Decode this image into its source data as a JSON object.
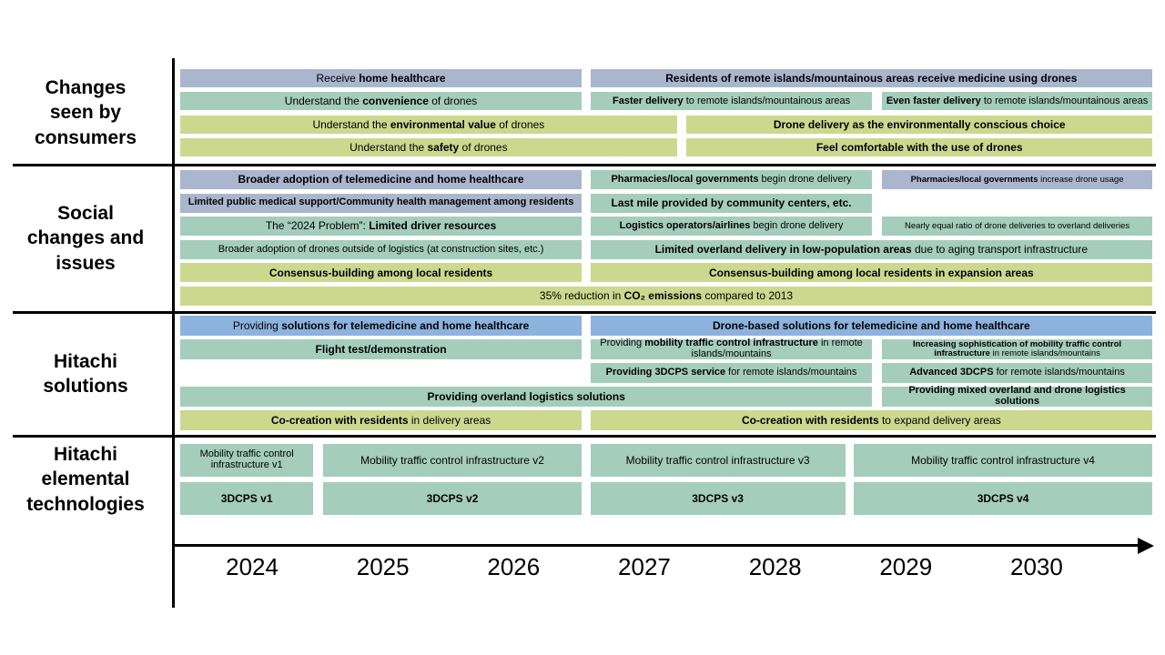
{
  "colors": {
    "grayblue": "#a9b6ce",
    "green": "#a4cdbb",
    "olive": "#ccd88e",
    "blue": "#8db2dd"
  },
  "timeline": {
    "years": [
      "2024",
      "2025",
      "2026",
      "2027",
      "2028",
      "2029",
      "2030"
    ]
  },
  "sections": [
    {
      "id": "consumers",
      "label": "Changes\nseen by\nconsumers",
      "rows": [
        [
          {
            "start": 0,
            "end": 41.3,
            "color": "grayblue",
            "segments": [
              {
                "text": "Receive ",
                "bold": false
              },
              {
                "text": "home healthcare",
                "bold": true
              }
            ]
          },
          {
            "start": 42.2,
            "end": 100,
            "color": "grayblue",
            "segments": [
              {
                "text": "Residents of remote islands/mountainous areas receive medicine using drones",
                "bold": true
              }
            ]
          }
        ],
        [
          {
            "start": 0,
            "end": 41.3,
            "color": "green",
            "segments": [
              {
                "text": "Understand the ",
                "bold": false
              },
              {
                "text": "convenience",
                "bold": true
              },
              {
                "text": " of drones",
                "bold": false
              }
            ]
          },
          {
            "start": 42.2,
            "end": 71.2,
            "color": "green",
            "size": "small",
            "segments": [
              {
                "text": "Faster delivery",
                "bold": true
              },
              {
                "text": " to remote islands/mountainous areas",
                "bold": false
              }
            ]
          },
          {
            "start": 72.2,
            "end": 100,
            "color": "green",
            "size": "small",
            "segments": [
              {
                "text": "Even faster delivery",
                "bold": true
              },
              {
                "text": " to remote islands/mountainous areas",
                "bold": false
              }
            ]
          }
        ],
        [
          {
            "start": 0,
            "end": 51.1,
            "color": "olive",
            "segments": [
              {
                "text": "Understand the ",
                "bold": false
              },
              {
                "text": "environmental value",
                "bold": true
              },
              {
                "text": " of drones",
                "bold": false
              }
            ]
          },
          {
            "start": 52.1,
            "end": 100,
            "color": "olive",
            "segments": [
              {
                "text": "Drone delivery as the environmentally conscious choice",
                "bold": true
              }
            ]
          }
        ],
        [
          {
            "start": 0,
            "end": 51.1,
            "color": "olive",
            "segments": [
              {
                "text": "Understand the ",
                "bold": false
              },
              {
                "text": "safety",
                "bold": true
              },
              {
                "text": " of drones",
                "bold": false
              }
            ]
          },
          {
            "start": 52.1,
            "end": 100,
            "color": "olive",
            "segments": [
              {
                "text": "Feel comfortable with the use of drones",
                "bold": true
              }
            ]
          }
        ]
      ]
    },
    {
      "id": "social",
      "label": "Social\nchanges and\nissues",
      "rows": [
        [
          {
            "start": 0,
            "end": 41.3,
            "color": "grayblue",
            "segments": [
              {
                "text": "Broader adoption of telemedicine and home healthcare",
                "bold": true
              }
            ]
          },
          {
            "start": 42.2,
            "end": 71.2,
            "color": "green",
            "size": "small",
            "segments": [
              {
                "text": "Pharmacies/local governments",
                "bold": true
              },
              {
                "text": " begin drone delivery",
                "bold": false
              }
            ]
          },
          {
            "start": 72.2,
            "end": 100,
            "color": "grayblue",
            "size": "xs",
            "segments": [
              {
                "text": "Pharmacies/local governments",
                "bold": true
              },
              {
                "text": " increase drone usage",
                "bold": false
              }
            ]
          }
        ],
        [
          {
            "start": 0,
            "end": 41.3,
            "color": "grayblue",
            "size": "small",
            "segments": [
              {
                "text": "Limited public medical support/Community health management among residents",
                "bold": true
              }
            ]
          },
          {
            "start": 42.2,
            "end": 71.2,
            "color": "green",
            "segments": [
              {
                "text": "Last mile provided by community centers, etc.",
                "bold": true
              }
            ]
          }
        ],
        [
          {
            "start": 0,
            "end": 41.3,
            "color": "green",
            "segments": [
              {
                "text": "The “2024 Problem”: ",
                "bold": false
              },
              {
                "text": "Limited driver resources",
                "bold": true
              }
            ]
          },
          {
            "start": 42.2,
            "end": 71.2,
            "color": "green",
            "size": "small",
            "segments": [
              {
                "text": "Logistics operators/airlines",
                "bold": true
              },
              {
                "text": " begin drone delivery",
                "bold": false
              }
            ]
          },
          {
            "start": 72.2,
            "end": 100,
            "color": "green",
            "size": "xs",
            "segments": [
              {
                "text": "Nearly equal ratio of drone deliveries to overland deliveries",
                "bold": false
              }
            ]
          }
        ],
        [
          {
            "start": 0,
            "end": 41.3,
            "color": "green",
            "size": "small",
            "segments": [
              {
                "text": "Broader adoption of drones outside of logistics (at construction sites, etc.)",
                "bold": false
              }
            ]
          },
          {
            "start": 42.2,
            "end": 100,
            "color": "green",
            "segments": [
              {
                "text": "Limited overland delivery in low-population areas",
                "bold": true
              },
              {
                "text": " due to aging transport infrastructure",
                "bold": false
              }
            ]
          }
        ],
        [
          {
            "start": 0,
            "end": 41.3,
            "color": "olive",
            "segments": [
              {
                "text": "Consensus-building among local residents",
                "bold": true
              }
            ]
          },
          {
            "start": 42.2,
            "end": 100,
            "color": "olive",
            "segments": [
              {
                "text": "Consensus-building among local residents in expansion areas",
                "bold": true
              }
            ]
          }
        ],
        [
          {
            "start": 0,
            "end": 100,
            "color": "olive",
            "segments": [
              {
                "text": "35% reduction in ",
                "bold": false
              },
              {
                "text": "CO₂ emissions",
                "bold": true
              },
              {
                "text": " compared to 2013",
                "bold": false
              }
            ]
          }
        ]
      ]
    },
    {
      "id": "solutions",
      "label": "Hitachi\nsolutions",
      "rows": [
        [
          {
            "start": 0,
            "end": 41.3,
            "color": "blue",
            "segments": [
              {
                "text": "Providing ",
                "bold": false
              },
              {
                "text": "solutions for telemedicine and home healthcare",
                "bold": true
              }
            ]
          },
          {
            "start": 42.2,
            "end": 100,
            "color": "blue",
            "segments": [
              {
                "text": "Drone-based solutions for telemedicine and home healthcare",
                "bold": true
              }
            ]
          }
        ],
        [
          {
            "start": 0,
            "end": 41.3,
            "color": "green",
            "segments": [
              {
                "text": "Flight test/demonstration",
                "bold": true
              }
            ]
          },
          {
            "start": 42.2,
            "end": 71.2,
            "color": "green",
            "size": "small",
            "segments": [
              {
                "text": "Providing ",
                "bold": false
              },
              {
                "text": "mobility traffic control infrastructure",
                "bold": true
              },
              {
                "text": " in remote islands/mountains",
                "bold": false
              }
            ]
          },
          {
            "start": 72.2,
            "end": 100,
            "color": "green",
            "size": "xs",
            "segments": [
              {
                "text": "Increasing sophistication of mobility traffic control infrastructure",
                "bold": true
              },
              {
                "text": " in remote islands/mountains",
                "bold": false
              }
            ]
          }
        ],
        [
          {
            "start": 42.2,
            "end": 71.2,
            "color": "green",
            "size": "small",
            "segments": [
              {
                "text": "Providing 3DCPS service",
                "bold": true
              },
              {
                "text": " for remote islands/mountains",
                "bold": false
              }
            ]
          },
          {
            "start": 72.2,
            "end": 100,
            "color": "green",
            "size": "small",
            "segments": [
              {
                "text": "Advanced 3DCPS",
                "bold": true
              },
              {
                "text": " for remote islands/mountains",
                "bold": false
              }
            ]
          }
        ],
        [
          {
            "start": 0,
            "end": 71.2,
            "color": "green",
            "segments": [
              {
                "text": "Providing overland logistics solutions",
                "bold": true
              }
            ]
          },
          {
            "start": 72.2,
            "end": 100,
            "color": "green",
            "size": "small",
            "segments": [
              {
                "text": "Providing mixed overland and drone logistics solutions",
                "bold": true
              }
            ]
          }
        ],
        [
          {
            "start": 0,
            "end": 41.3,
            "color": "olive",
            "segments": [
              {
                "text": "Co-creation with residents",
                "bold": true
              },
              {
                "text": " in delivery areas",
                "bold": false
              }
            ]
          },
          {
            "start": 42.2,
            "end": 100,
            "color": "olive",
            "segments": [
              {
                "text": "Co-creation with residents",
                "bold": true
              },
              {
                "text": " to expand delivery areas",
                "bold": false
              }
            ]
          }
        ]
      ]
    },
    {
      "id": "elemental",
      "label": "Hitachi\nelemental\ntechnologies",
      "rows": [
        [
          {
            "start": 0,
            "end": 13.7,
            "color": "green",
            "size": "small",
            "segments": [
              {
                "text": "Mobility traffic control infrastructure v1",
                "bold": false
              }
            ]
          },
          {
            "start": 14.7,
            "end": 41.3,
            "color": "green",
            "segments": [
              {
                "text": "Mobility traffic control infrastructure v2",
                "bold": false
              }
            ]
          },
          {
            "start": 42.2,
            "end": 68.4,
            "color": "green",
            "segments": [
              {
                "text": "Mobility traffic control infrastructure v3",
                "bold": false
              }
            ]
          },
          {
            "start": 69.3,
            "end": 100,
            "color": "green",
            "segments": [
              {
                "text": "Mobility traffic control infrastructure v4",
                "bold": false
              }
            ]
          }
        ],
        [
          {
            "start": 0,
            "end": 13.7,
            "color": "green",
            "segments": [
              {
                "text": "3DCPS v1",
                "bold": true
              }
            ]
          },
          {
            "start": 14.7,
            "end": 41.3,
            "color": "green",
            "segments": [
              {
                "text": "3DCPS v2",
                "bold": true
              }
            ]
          },
          {
            "start": 42.2,
            "end": 68.4,
            "color": "green",
            "segments": [
              {
                "text": "3DCPS v3",
                "bold": true
              }
            ]
          },
          {
            "start": 69.3,
            "end": 100,
            "color": "green",
            "segments": [
              {
                "text": "3DCPS v4",
                "bold": true
              }
            ]
          }
        ]
      ]
    }
  ]
}
